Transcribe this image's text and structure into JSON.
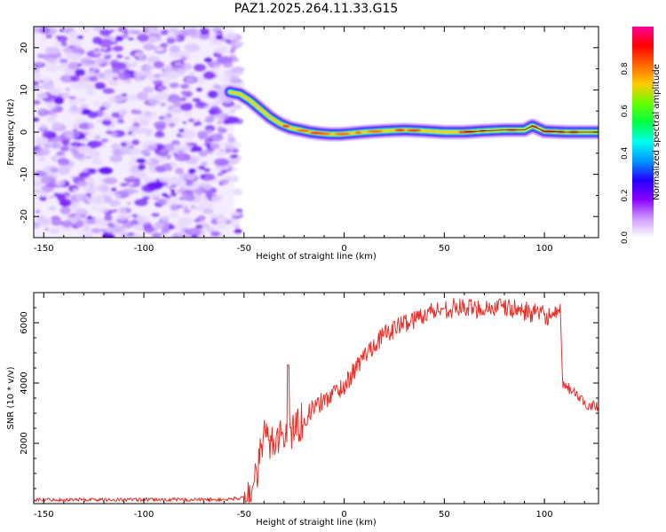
{
  "title": "PAZ1.2025.264.11.33.G15",
  "chart_data": [
    {
      "type": "heatmap",
      "xlabel": "Height of straight line (km)",
      "ylabel": "Frequency (Hz)",
      "xlim": [
        -155,
        127
      ],
      "ylim": [
        -25,
        25
      ],
      "xticks": [
        -150,
        -100,
        -50,
        0,
        50,
        100
      ],
      "yticks": [
        -20,
        -10,
        0,
        10,
        20
      ],
      "noise_region_x": [
        -155,
        -55
      ],
      "ridge": {
        "x": [
          -57,
          -52,
          -47,
          -42,
          -37,
          -32,
          -27,
          -22,
          -17,
          -12,
          -7,
          -2,
          3,
          10,
          20,
          30,
          40,
          50,
          60,
          70,
          80,
          90,
          94,
          100,
          110,
          120,
          127
        ],
        "y": [
          9.5,
          9.0,
          7.5,
          5.5,
          3.5,
          2.0,
          1.0,
          0.5,
          0.0,
          -0.3,
          -0.5,
          -0.5,
          -0.3,
          0.0,
          0.3,
          0.5,
          0.3,
          0.0,
          0.0,
          0.3,
          0.5,
          0.5,
          1.5,
          0.2,
          0.0,
          0.0,
          0.0
        ]
      },
      "colorbar": {
        "label": "Normalized spectral amplitude",
        "range": [
          0,
          1
        ],
        "ticks": [
          "0.0",
          "0.2",
          "0.4",
          "0.6",
          "0.8"
        ],
        "tick_values": [
          0,
          0.2,
          0.4,
          0.6,
          0.8
        ],
        "stops": [
          "#ffffff",
          "#cc99ff",
          "#8800ff",
          "#2200ff",
          "#0099ff",
          "#00ffee",
          "#00ff44",
          "#66ff00",
          "#ffcc00",
          "#ff6600",
          "#ff0000",
          "#ff0099"
        ]
      }
    },
    {
      "type": "line",
      "xlabel": "Height of straight line (km)",
      "ylabel": "SNR (10 * v/v)",
      "xlim": [
        -155,
        127
      ],
      "ylim": [
        0,
        7000
      ],
      "xticks": [
        -150,
        -100,
        -50,
        0,
        50,
        100
      ],
      "yticks": [
        2000,
        4000,
        6000
      ],
      "series": [
        {
          "name": "SNR",
          "color": "#e8302a",
          "x": [
            -155,
            -100,
            -60,
            -50,
            -45,
            -42,
            -40,
            -37,
            -35,
            -30,
            -25,
            -20,
            -15,
            -10,
            -5,
            0,
            5,
            10,
            15,
            20,
            25,
            30,
            35,
            40,
            45,
            50,
            55,
            60,
            65,
            70,
            75,
            80,
            85,
            90,
            95,
            100,
            105,
            108,
            109,
            110,
            115,
            120,
            127
          ],
          "y": [
            130,
            130,
            130,
            200,
            500,
            1500,
            2300,
            2000,
            2200,
            2300,
            2500,
            2800,
            3200,
            3400,
            3700,
            3900,
            4400,
            4900,
            5300,
            5600,
            5800,
            6000,
            6100,
            6300,
            6400,
            6450,
            6500,
            6500,
            6450,
            6500,
            6500,
            6500,
            6450,
            6400,
            6300,
            6250,
            6200,
            6300,
            4000,
            3900,
            3700,
            3300,
            3250
          ]
        }
      ]
    }
  ]
}
